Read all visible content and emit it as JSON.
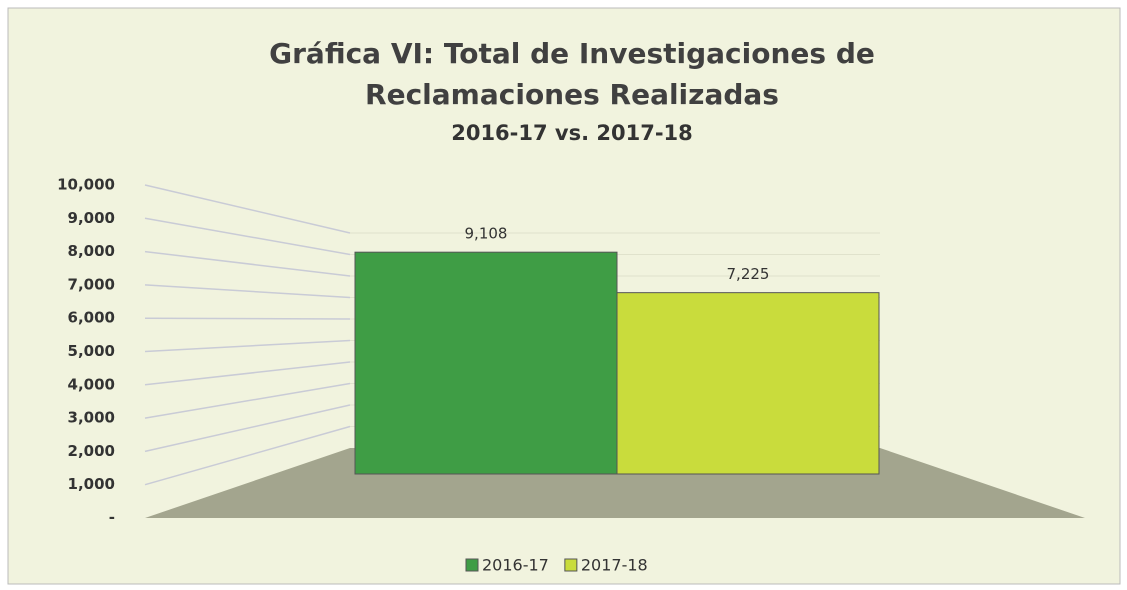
{
  "chart_data": {
    "type": "bar3d",
    "title": [
      "Gráfica VI: Total de Investigaciones de",
      "Reclamaciones  Realizadas"
    ],
    "subtitle": "2016-17 vs. 2017-18",
    "categories": [
      null
    ],
    "series": [
      {
        "name": "2016-17",
        "color": "#3f9d45",
        "values": [
          9108
        ],
        "value_labels": [
          "9,108"
        ]
      },
      {
        "name": "2017-18",
        "color": "#c9dc3c",
        "values": [
          7225
        ],
        "value_labels": [
          "7,225"
        ]
      }
    ],
    "ylim": [
      0,
      10000
    ],
    "yticks": [
      {
        "value": 0,
        "label": "-"
      },
      {
        "value": 1000,
        "label": "1,000"
      },
      {
        "value": 2000,
        "label": "2,000"
      },
      {
        "value": 3000,
        "label": "3,000"
      },
      {
        "value": 4000,
        "label": "4,000"
      },
      {
        "value": 5000,
        "label": "5,000"
      },
      {
        "value": 6000,
        "label": "6,000"
      },
      {
        "value": 7000,
        "label": "7,000"
      },
      {
        "value": 8000,
        "label": "8,000"
      },
      {
        "value": 9000,
        "label": "9,000"
      },
      {
        "value": 10000,
        "label": "10,000"
      }
    ],
    "grid": true,
    "legend": "bottom"
  }
}
